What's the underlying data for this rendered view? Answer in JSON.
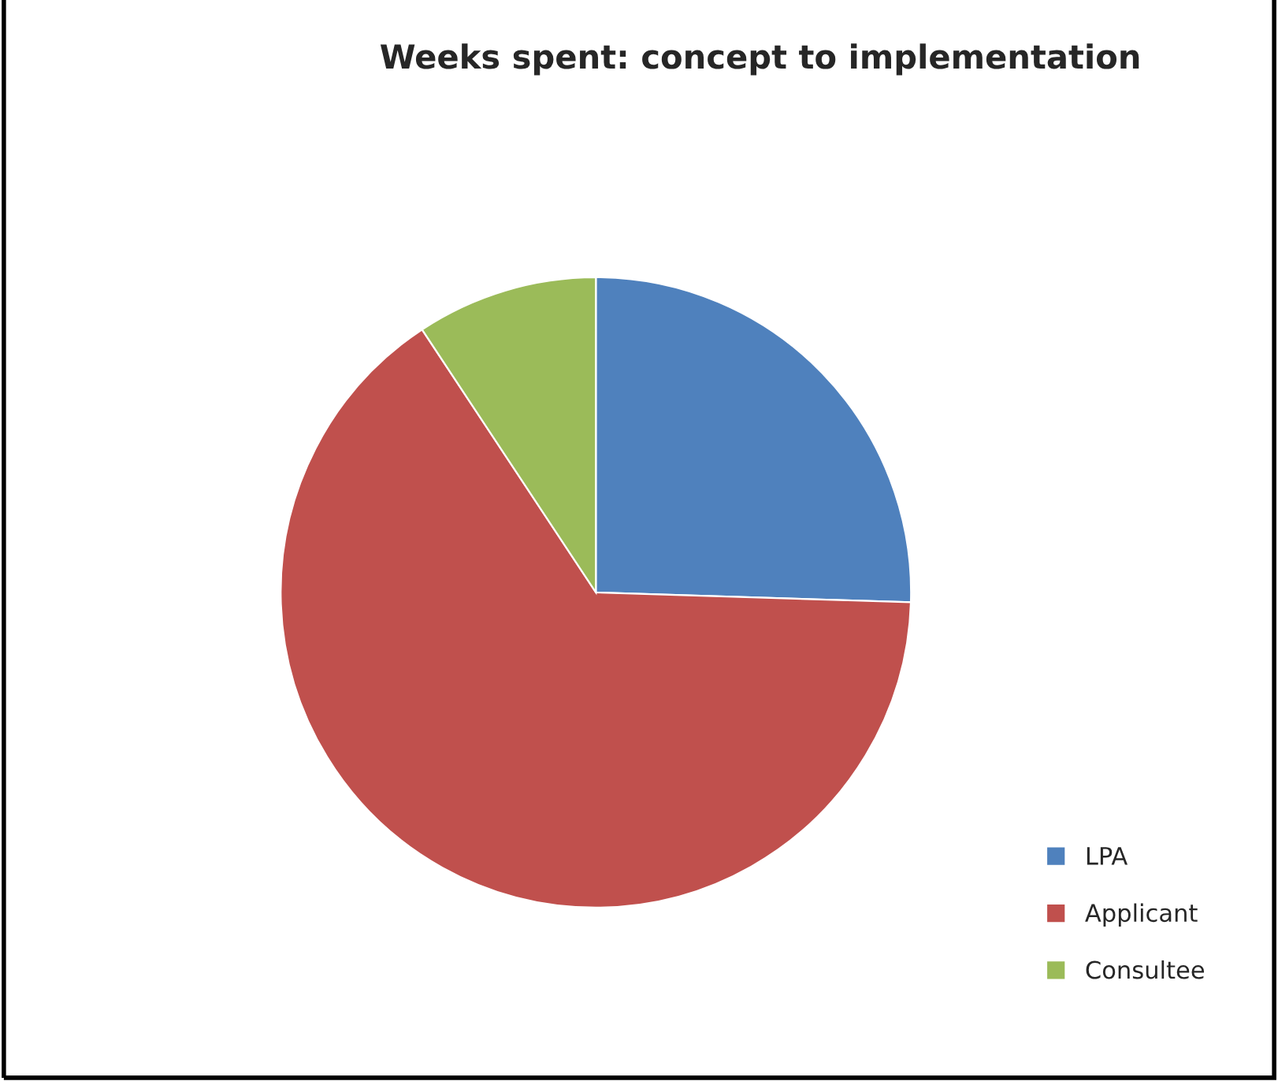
{
  "chart_data": {
    "type": "pie",
    "title": "Weeks spent: concept to implementation",
    "categories": [
      "LPA",
      "Applicant",
      "Consultee"
    ],
    "values": [
      25.5,
      65.2,
      9.3
    ],
    "colors": [
      "#4f81bd",
      "#c0504d",
      "#9bbb59"
    ],
    "legend": "bottom right"
  }
}
